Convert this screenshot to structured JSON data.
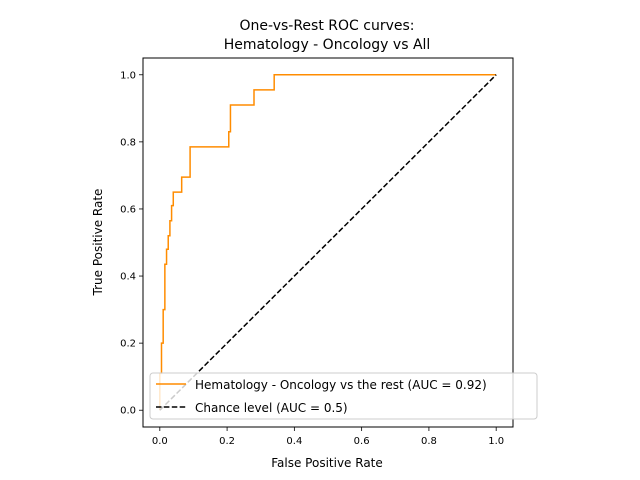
{
  "chart_data": {
    "type": "line",
    "title": "One-vs-Rest ROC curves:\nHematology - Oncology vs All",
    "xlabel": "False Positive Rate",
    "ylabel": "True Positive Rate",
    "xlim": [
      -0.05,
      1.05
    ],
    "ylim": [
      -0.05,
      1.05
    ],
    "xticks": [
      "0.0",
      "0.2",
      "0.4",
      "0.6",
      "0.8",
      "1.0"
    ],
    "yticks": [
      "0.0",
      "0.2",
      "0.4",
      "0.6",
      "0.8",
      "1.0"
    ],
    "grid": false,
    "legend_position": "lower-right",
    "series": [
      {
        "name": "Hematology - Oncology vs the rest (AUC = 0.92)",
        "color": "#ff8c00",
        "style": "solid",
        "x": [
          0.0,
          0.0,
          0.005,
          0.005,
          0.01,
          0.01,
          0.015,
          0.015,
          0.02,
          0.02,
          0.025,
          0.025,
          0.03,
          0.03,
          0.035,
          0.035,
          0.04,
          0.04,
          0.045,
          0.045,
          0.05,
          0.05,
          0.065,
          0.065,
          0.09,
          0.09,
          0.205,
          0.205,
          0.21,
          0.21,
          0.28,
          0.28,
          0.34,
          0.34,
          1.0
        ],
        "y": [
          0.0,
          0.11,
          0.11,
          0.2,
          0.2,
          0.3,
          0.3,
          0.435,
          0.435,
          0.48,
          0.48,
          0.52,
          0.52,
          0.565,
          0.565,
          0.61,
          0.61,
          0.65,
          0.65,
          0.65,
          0.65,
          0.65,
          0.65,
          0.695,
          0.695,
          0.785,
          0.785,
          0.83,
          0.83,
          0.91,
          0.91,
          0.955,
          0.955,
          1.0,
          1.0
        ]
      },
      {
        "name": "Chance level (AUC = 0.5)",
        "color": "#000000",
        "style": "dashed",
        "x": [
          0.0,
          1.0
        ],
        "y": [
          0.0,
          1.0
        ]
      }
    ]
  }
}
